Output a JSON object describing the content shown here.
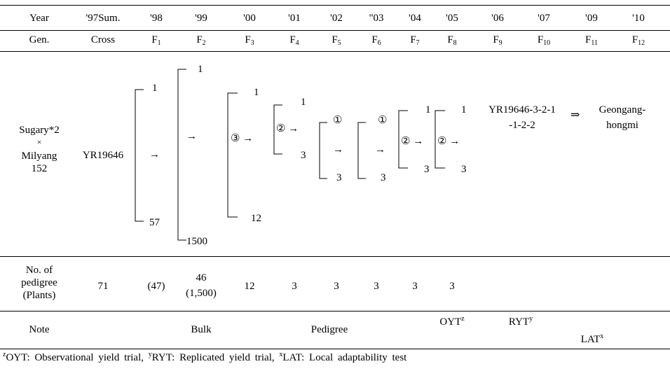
{
  "header": {
    "year_label": "Year",
    "gen_label": "Gen.",
    "years": [
      "'97Sum.",
      "'98",
      "'99",
      "'00",
      "'01",
      "'02",
      "\"03",
      "'04",
      "'05",
      "'06",
      "'07",
      "'09",
      "'10"
    ],
    "gens": [
      {
        "base": "Cross",
        "sub": ""
      },
      {
        "base": "F",
        "sub": "1"
      },
      {
        "base": "F",
        "sub": "2"
      },
      {
        "base": "F",
        "sub": "3"
      },
      {
        "base": "F",
        "sub": "4"
      },
      {
        "base": "F",
        "sub": "5"
      },
      {
        "base": "F",
        "sub": "6"
      },
      {
        "base": "F",
        "sub": "7"
      },
      {
        "base": "F",
        "sub": "8"
      },
      {
        "base": "F",
        "sub": "9"
      },
      {
        "base": "F",
        "sub": "10"
      },
      {
        "base": "F",
        "sub": "11"
      },
      {
        "base": "F",
        "sub": "12"
      }
    ]
  },
  "diagram": {
    "parents": [
      "Sugary*2",
      "×",
      "Milyang",
      "152"
    ],
    "cross_name": "YR19646",
    "f1": {
      "top": "1",
      "bottom": "57"
    },
    "f2": {
      "top": "1",
      "bottom": "1500"
    },
    "f3": {
      "top": "1",
      "bottom": "12",
      "circled": "③"
    },
    "f4": {
      "top": "1",
      "bottom": "3",
      "circled": "②"
    },
    "f5": {
      "circled": "①",
      "bottom": "3"
    },
    "f6": {
      "circled": "①",
      "bottom": "3"
    },
    "f7": {
      "top": "1",
      "bottom": "3",
      "circled": "②"
    },
    "f8": {
      "top": "1",
      "bottom": "3",
      "circled": "②"
    },
    "line_name": [
      "YR19646-3-2-1",
      "-1-2-2"
    ],
    "final_arrow": "⇒",
    "variety": [
      "Geongang-",
      "hongmi"
    ],
    "arrow": "→"
  },
  "pedigree": {
    "label": [
      "No. of",
      "pedigree",
      "(Plants)"
    ],
    "values": [
      "71",
      "(47)",
      "46",
      "(1,500)",
      "12",
      "3",
      "3",
      "3",
      "3",
      "3"
    ]
  },
  "note": {
    "label": "Note",
    "bulk": "Bulk",
    "pedigree": "Pedigree",
    "oyt": {
      "base": "OYT",
      "sup": "z"
    },
    "ryt": {
      "base": "RYT",
      "sup": "y"
    },
    "lat": {
      "base": "LAT",
      "sup": "x"
    }
  },
  "footnote": {
    "parts": [
      {
        "sup": "z",
        "text": "OYT: Observational yield trial, "
      },
      {
        "sup": "y",
        "text": "RYT: Replicated yield trial, "
      },
      {
        "sup": "x",
        "text": "LAT: Local adaptability test"
      }
    ]
  }
}
